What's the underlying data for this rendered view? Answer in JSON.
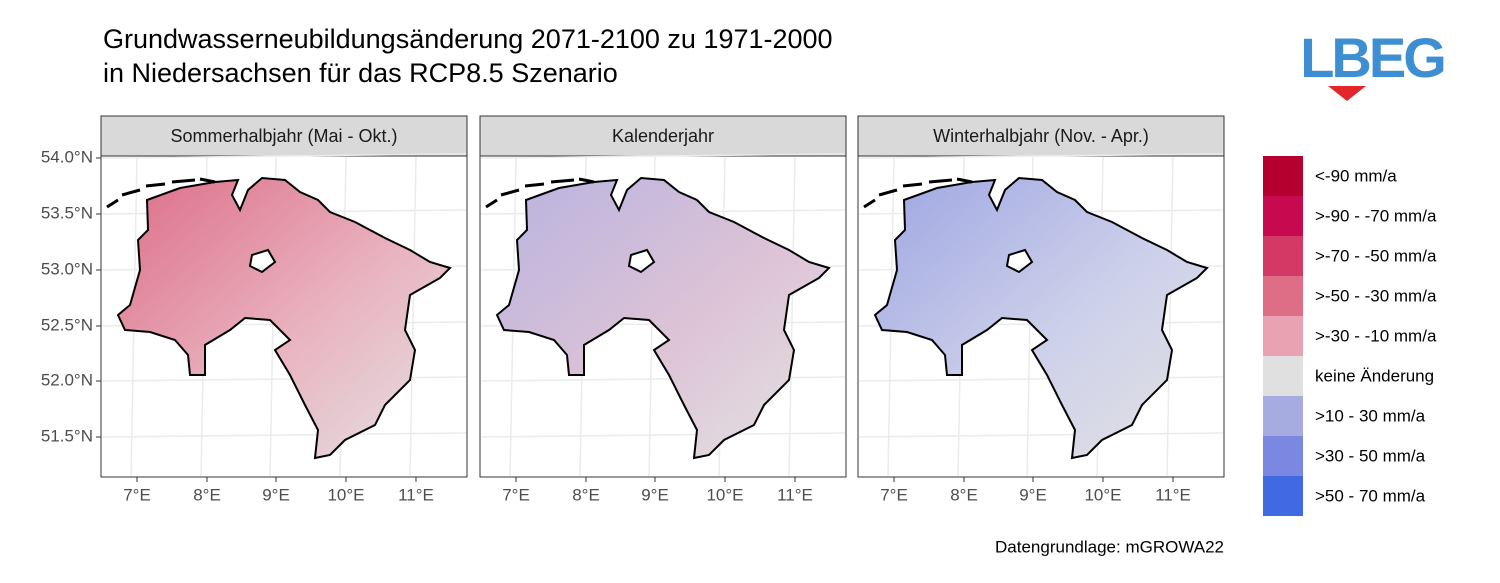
{
  "title": {
    "line1": "Grundwasserneubildungsänderung 2071-2100 zu 1971-2000",
    "line2": "in Niedersachsen für das RCP8.5 Szenario"
  },
  "logo": "LBEG",
  "panels": [
    {
      "title": "Sommerhalbjahr (Mai - Okt.)"
    },
    {
      "title": "Kalenderjahr"
    },
    {
      "title": "Winterhalbjahr (Nov. - Apr.)"
    }
  ],
  "y_axis": {
    "labels": [
      "54.0°N",
      "53.5°N",
      "53.0°N",
      "52.5°N",
      "52.0°N",
      "51.5°N"
    ]
  },
  "x_axis": {
    "labels": [
      "7°E",
      "8°E",
      "9°E",
      "10°E",
      "11°E"
    ]
  },
  "legend": {
    "items": [
      {
        "label": "<-90 mm/a",
        "color": "#b5002f"
      },
      {
        "label": ">-90 - -70 mm/a",
        "color": "#c7094f"
      },
      {
        "label": ">-70 - -50 mm/a",
        "color": "#d43966"
      },
      {
        "label": ">-50 - -30 mm/a",
        "color": "#de6d86"
      },
      {
        "label": ">-30 - -10 mm/a",
        "color": "#e8a2b2"
      },
      {
        "label": "keine Änderung",
        "color": "#e0e0e0"
      },
      {
        "label": ">10 - 30 mm/a",
        "color": "#a6acdf"
      },
      {
        "label": ">30 - 50 mm/a",
        "color": "#7b88e2"
      },
      {
        "label": ">50 - 70 mm/a",
        "color": "#4169e1"
      }
    ]
  },
  "caption": "Datengrundlage: mGROWA22"
}
